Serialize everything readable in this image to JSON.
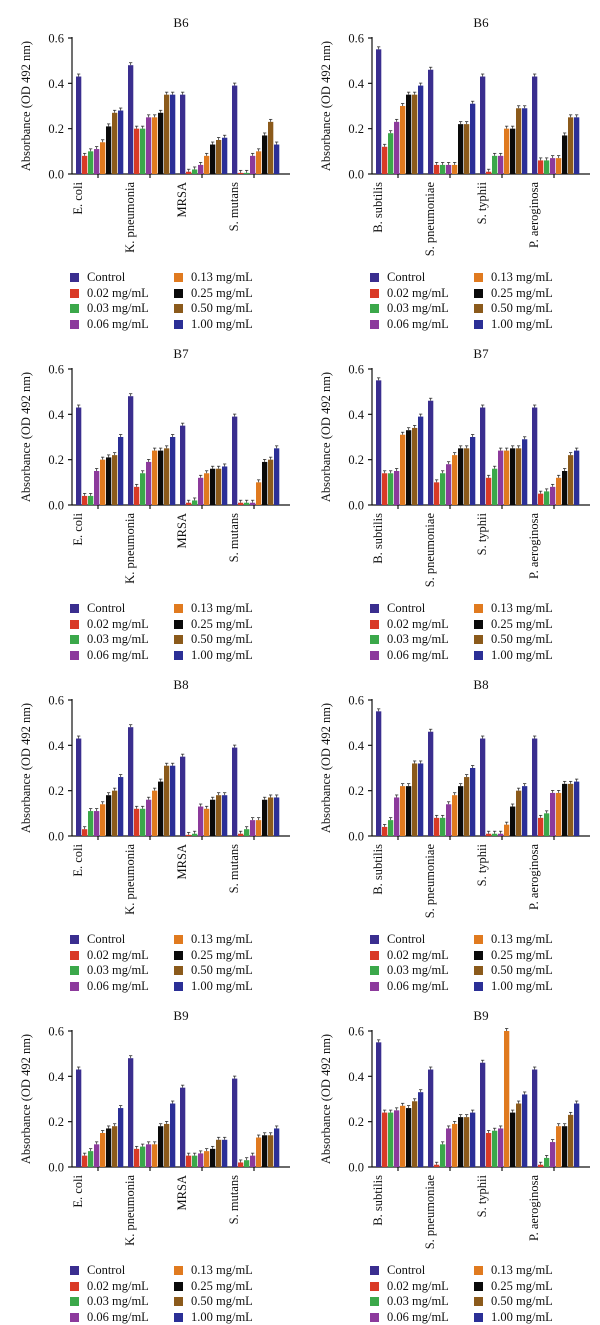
{
  "colors": {
    "Control": "#3a2e8f",
    "0.02 mg/mL": "#d93a26",
    "0.03 mg/mL": "#3ba84a",
    "0.06 mg/mL": "#8c3a9c",
    "0.13 mg/mL": "#e07a1f",
    "0.25 mg/mL": "#0a0a0a",
    "0.50 mg/mL": "#8b5a1b",
    "1.00 mg/mL": "#2b2f96"
  },
  "legend": [
    "Control",
    "0.02 mg/mL",
    "0.03 mg/mL",
    "0.06 mg/mL",
    "0.13 mg/mL",
    "0.25 mg/mL",
    "0.50 mg/mL",
    "1.00 mg/mL"
  ],
  "chart_data": [
    {
      "type": "bar",
      "title": "B6",
      "ylabel": "Absorbance (OD 492 nm)",
      "ylim": [
        0,
        0.6
      ],
      "yticks": [
        "0.0",
        "0.2",
        "0.4",
        "0.6"
      ],
      "categories": [
        "E. coli",
        "K. pneumonia",
        "MRSA",
        "S. mutans"
      ],
      "series": [
        {
          "name": "Control",
          "values": [
            0.43,
            0.48,
            0.35,
            0.39
          ]
        },
        {
          "name": "0.02 mg/mL",
          "values": [
            0.08,
            0.2,
            0.01,
            0.005
          ]
        },
        {
          "name": "0.03 mg/mL",
          "values": [
            0.1,
            0.2,
            0.02,
            0.005
          ]
        },
        {
          "name": "0.06 mg/mL",
          "values": [
            0.11,
            0.25,
            0.04,
            0.08
          ]
        },
        {
          "name": "0.13 mg/mL",
          "values": [
            0.14,
            0.25,
            0.08,
            0.1
          ]
        },
        {
          "name": "0.25 mg/mL",
          "values": [
            0.21,
            0.27,
            0.13,
            0.17
          ]
        },
        {
          "name": "0.50 mg/mL",
          "values": [
            0.27,
            0.35,
            0.15,
            0.23
          ]
        },
        {
          "name": "1.00 mg/mL",
          "values": [
            0.28,
            0.35,
            0.16,
            0.13
          ]
        }
      ]
    },
    {
      "type": "bar",
      "title": "B6",
      "ylabel": "Absorbance (OD 492 nm)",
      "ylim": [
        0,
        0.6
      ],
      "yticks": [
        "0.0",
        "0.2",
        "0.4",
        "0.6"
      ],
      "categories": [
        "B. subtilis",
        "S. pneumoniae",
        "S. typhii",
        "P. aeroginosa"
      ],
      "series": [
        {
          "name": "Control",
          "values": [
            0.55,
            0.46,
            0.43,
            0.43
          ]
        },
        {
          "name": "0.02 mg/mL",
          "values": [
            0.12,
            0.04,
            0.01,
            0.06
          ]
        },
        {
          "name": "0.03 mg/mL",
          "values": [
            0.18,
            0.04,
            0.08,
            0.06
          ]
        },
        {
          "name": "0.06 mg/mL",
          "values": [
            0.23,
            0.04,
            0.08,
            0.07
          ]
        },
        {
          "name": "0.13 mg/mL",
          "values": [
            0.3,
            0.04,
            0.2,
            0.07
          ]
        },
        {
          "name": "0.25 mg/mL",
          "values": [
            0.35,
            0.22,
            0.2,
            0.17
          ]
        },
        {
          "name": "0.50 mg/mL",
          "values": [
            0.35,
            0.22,
            0.29,
            0.25
          ]
        },
        {
          "name": "1.00 mg/mL",
          "values": [
            0.39,
            0.31,
            0.29,
            0.25
          ]
        }
      ]
    },
    {
      "type": "bar",
      "title": "B7",
      "ylabel": "Absorbance (OD 492 nm)",
      "ylim": [
        0,
        0.6
      ],
      "yticks": [
        "0.0",
        "0.2",
        "0.4",
        "0.6"
      ],
      "categories": [
        "E. coli",
        "K. pneumonia",
        "MRSA",
        "S. mutans"
      ],
      "series": [
        {
          "name": "Control",
          "values": [
            0.43,
            0.48,
            0.35,
            0.39
          ]
        },
        {
          "name": "0.02 mg/mL",
          "values": [
            0.04,
            0.08,
            0.01,
            0.01
          ]
        },
        {
          "name": "0.03 mg/mL",
          "values": [
            0.04,
            0.14,
            0.02,
            0.01
          ]
        },
        {
          "name": "0.06 mg/mL",
          "values": [
            0.15,
            0.19,
            0.12,
            0.01
          ]
        },
        {
          "name": "0.13 mg/mL",
          "values": [
            0.2,
            0.24,
            0.14,
            0.1
          ]
        },
        {
          "name": "0.25 mg/mL",
          "values": [
            0.21,
            0.24,
            0.16,
            0.19
          ]
        },
        {
          "name": "0.50 mg/mL",
          "values": [
            0.22,
            0.25,
            0.16,
            0.2
          ]
        },
        {
          "name": "1.00 mg/mL",
          "values": [
            0.3,
            0.3,
            0.17,
            0.25
          ]
        }
      ]
    },
    {
      "type": "bar",
      "title": "B7",
      "ylabel": "Absorbance (OD 492 nm)",
      "ylim": [
        0,
        0.6
      ],
      "yticks": [
        "0.0",
        "0.2",
        "0.4",
        "0.6"
      ],
      "categories": [
        "B. subtilis",
        "S. pneumoniae",
        "S. typhii",
        "P. aeroginosa"
      ],
      "series": [
        {
          "name": "Control",
          "values": [
            0.55,
            0.46,
            0.43,
            0.43
          ]
        },
        {
          "name": "0.02 mg/mL",
          "values": [
            0.14,
            0.1,
            0.12,
            0.05
          ]
        },
        {
          "name": "0.03 mg/mL",
          "values": [
            0.14,
            0.14,
            0.16,
            0.06
          ]
        },
        {
          "name": "0.06 mg/mL",
          "values": [
            0.15,
            0.18,
            0.24,
            0.08
          ]
        },
        {
          "name": "0.13 mg/mL",
          "values": [
            0.31,
            0.22,
            0.24,
            0.12
          ]
        },
        {
          "name": "0.25 mg/mL",
          "values": [
            0.33,
            0.25,
            0.25,
            0.15
          ]
        },
        {
          "name": "0.50 mg/mL",
          "values": [
            0.34,
            0.25,
            0.25,
            0.22
          ]
        },
        {
          "name": "1.00 mg/mL",
          "values": [
            0.39,
            0.3,
            0.29,
            0.24
          ]
        }
      ]
    },
    {
      "type": "bar",
      "title": "B8",
      "ylabel": "Absorbance (OD 492 nm)",
      "ylim": [
        0,
        0.6
      ],
      "yticks": [
        "0.0",
        "0.2",
        "0.4",
        "0.6"
      ],
      "categories": [
        "E. coli",
        "K. pneumonia",
        "MRSA",
        "S. mutans"
      ],
      "series": [
        {
          "name": "Control",
          "values": [
            0.43,
            0.48,
            0.35,
            0.39
          ]
        },
        {
          "name": "0.02 mg/mL",
          "values": [
            0.03,
            0.12,
            0.005,
            0.01
          ]
        },
        {
          "name": "0.03 mg/mL",
          "values": [
            0.11,
            0.12,
            0.01,
            0.03
          ]
        },
        {
          "name": "0.06 mg/mL",
          "values": [
            0.11,
            0.16,
            0.13,
            0.07
          ]
        },
        {
          "name": "0.13 mg/mL",
          "values": [
            0.14,
            0.2,
            0.12,
            0.07
          ]
        },
        {
          "name": "0.25 mg/mL",
          "values": [
            0.18,
            0.24,
            0.16,
            0.16
          ]
        },
        {
          "name": "0.50 mg/mL",
          "values": [
            0.2,
            0.31,
            0.18,
            0.17
          ]
        },
        {
          "name": "1.00 mg/mL",
          "values": [
            0.26,
            0.31,
            0.18,
            0.17
          ]
        }
      ]
    },
    {
      "type": "bar",
      "title": "B8",
      "ylabel": "Absorbance (OD 492 nm)",
      "ylim": [
        0,
        0.6
      ],
      "yticks": [
        "0.0",
        "0.2",
        "0.4",
        "0.6"
      ],
      "categories": [
        "B. subtilis",
        "S. pneumoniae",
        "S. typhii",
        "P. aeroginosa"
      ],
      "series": [
        {
          "name": "Control",
          "values": [
            0.55,
            0.46,
            0.43,
            0.43
          ]
        },
        {
          "name": "0.02 mg/mL",
          "values": [
            0.04,
            0.08,
            0.01,
            0.08
          ]
        },
        {
          "name": "0.03 mg/mL",
          "values": [
            0.07,
            0.08,
            0.01,
            0.1
          ]
        },
        {
          "name": "0.06 mg/mL",
          "values": [
            0.17,
            0.14,
            0.01,
            0.19
          ]
        },
        {
          "name": "0.13 mg/mL",
          "values": [
            0.22,
            0.18,
            0.05,
            0.19
          ]
        },
        {
          "name": "0.25 mg/mL",
          "values": [
            0.22,
            0.22,
            0.13,
            0.23
          ]
        },
        {
          "name": "0.50 mg/mL",
          "values": [
            0.32,
            0.26,
            0.2,
            0.23
          ]
        },
        {
          "name": "1.00 mg/mL",
          "values": [
            0.32,
            0.3,
            0.22,
            0.24
          ]
        }
      ]
    },
    {
      "type": "bar",
      "title": "B9",
      "ylabel": "Absorbance (OD 492 nm)",
      "ylim": [
        0,
        0.6
      ],
      "yticks": [
        "0.0",
        "0.2",
        "0.4",
        "0.6"
      ],
      "categories": [
        "E. coli",
        "K. pneumonia",
        "MRSA",
        "S. mutans"
      ],
      "series": [
        {
          "name": "Control",
          "values": [
            0.43,
            0.48,
            0.35,
            0.39
          ]
        },
        {
          "name": "0.02 mg/mL",
          "values": [
            0.05,
            0.08,
            0.05,
            0.02
          ]
        },
        {
          "name": "0.03 mg/mL",
          "values": [
            0.07,
            0.09,
            0.05,
            0.03
          ]
        },
        {
          "name": "0.06 mg/mL",
          "values": [
            0.1,
            0.1,
            0.06,
            0.05
          ]
        },
        {
          "name": "0.13 mg/mL",
          "values": [
            0.15,
            0.1,
            0.07,
            0.13
          ]
        },
        {
          "name": "0.25 mg/mL",
          "values": [
            0.17,
            0.18,
            0.08,
            0.14
          ]
        },
        {
          "name": "0.50 mg/mL",
          "values": [
            0.18,
            0.19,
            0.12,
            0.14
          ]
        },
        {
          "name": "1.00 mg/mL",
          "values": [
            0.26,
            0.28,
            0.12,
            0.17
          ]
        }
      ]
    },
    {
      "type": "bar",
      "title": "B9",
      "ylabel": "Absorbance (OD 492 nm)",
      "ylim": [
        0,
        0.6
      ],
      "yticks": [
        "0.0",
        "0.2",
        "0.4",
        "0.6"
      ],
      "categories": [
        "B. subtilis",
        "S. pneumoniae",
        "S. typhii",
        "P. aeroginosa"
      ],
      "series": [
        {
          "name": "Control",
          "values": [
            0.55,
            0.43,
            0.46,
            0.43
          ]
        },
        {
          "name": "0.02 mg/mL",
          "values": [
            0.24,
            0.01,
            0.15,
            0.01
          ]
        },
        {
          "name": "0.03 mg/mL",
          "values": [
            0.24,
            0.1,
            0.16,
            0.04
          ]
        },
        {
          "name": "0.06 mg/mL",
          "values": [
            0.25,
            0.17,
            0.17,
            0.11
          ]
        },
        {
          "name": "0.13 mg/mL",
          "values": [
            0.27,
            0.19,
            0.6,
            0.18
          ]
        },
        {
          "name": "0.25 mg/mL",
          "values": [
            0.26,
            0.22,
            0.24,
            0.18
          ]
        },
        {
          "name": "0.50 mg/mL",
          "values": [
            0.29,
            0.22,
            0.28,
            0.23
          ]
        },
        {
          "name": "1.00 mg/mL",
          "values": [
            0.33,
            0.24,
            0.32,
            0.28
          ]
        }
      ]
    }
  ]
}
